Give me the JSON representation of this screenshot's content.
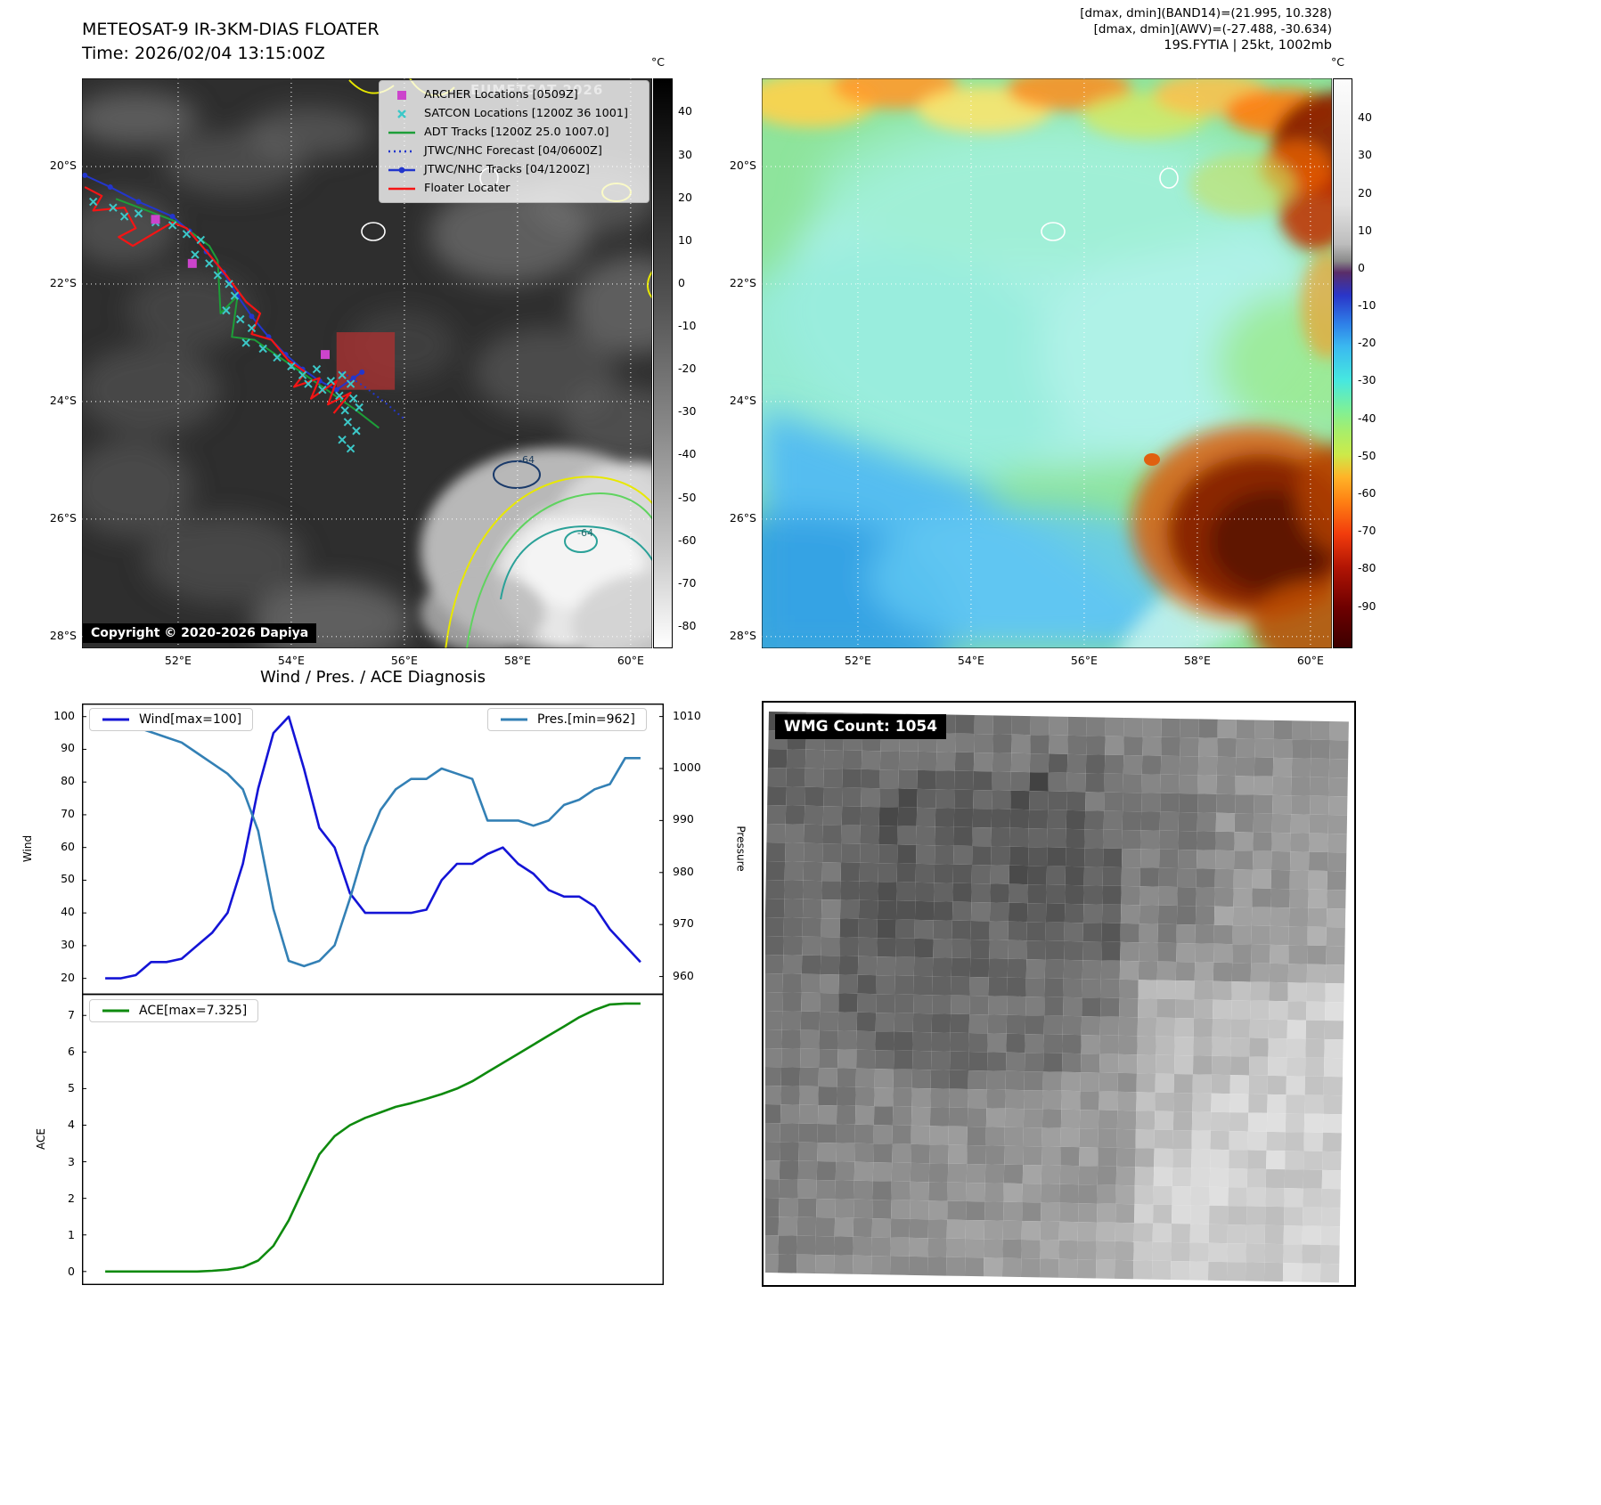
{
  "colors": {
    "wind": "#1414d6",
    "pressure": "#3380b5",
    "ace": "#0e8a0e",
    "track_red": "#f51414",
    "track_green": "#1d9e38",
    "track_blue": "#2336cc",
    "satcon": "#3cc8c8",
    "archer": "#cc44cc",
    "floater_box": "#a83232"
  },
  "panel_ir_gray": {
    "title": "METEOSAT-9 IR-3KM-DIAS FLOATER",
    "subtitle": "Time: 2026/02/04 13:15:00Z",
    "watermark": "EUMETSAT 2026",
    "copyright": "Copyright © 2020-2026 Dapiya",
    "legend": [
      "ARCHER Locations [0509Z]",
      "SATCON Locations [1200Z 36 1001]",
      "ADT Tracks [1200Z 25.0 1007.0]",
      "JTWC/NHC Forecast [04/0600Z]",
      "JTWC/NHC Tracks [04/1200Z]",
      "Floater Locater"
    ],
    "x_ticks": [
      "52°E",
      "54°E",
      "56°E",
      "58°E",
      "60°E"
    ],
    "y_ticks": [
      "20°S",
      "22°S",
      "24°S",
      "26°S",
      "28°S"
    ],
    "colorbar_unit": "°C",
    "colorbar_ticks": [
      40,
      30,
      20,
      10,
      0,
      -10,
      -20,
      -30,
      -40,
      -50,
      -60,
      -70,
      -80
    ],
    "contour_labels": [
      "-64",
      "-64"
    ],
    "tracks": {
      "floater": [
        [
          50.35,
          20.35
        ],
        [
          50.65,
          20.5
        ],
        [
          50.5,
          20.75
        ],
        [
          51.05,
          20.7
        ],
        [
          51.25,
          21.05
        ],
        [
          50.95,
          21.2
        ],
        [
          51.2,
          21.35
        ],
        [
          51.9,
          20.95
        ],
        [
          52.15,
          21.05
        ],
        [
          52.55,
          21.5
        ],
        [
          52.85,
          21.85
        ],
        [
          53.2,
          22.3
        ],
        [
          53.45,
          22.5
        ],
        [
          53.3,
          22.85
        ],
        [
          53.65,
          22.95
        ],
        [
          53.95,
          23.3
        ],
        [
          54.25,
          23.5
        ],
        [
          54.05,
          23.75
        ],
        [
          54.5,
          23.6
        ],
        [
          54.35,
          23.95
        ],
        [
          54.8,
          23.65
        ],
        [
          54.65,
          24.05
        ],
        [
          55.05,
          23.85
        ],
        [
          54.75,
          24.2
        ]
      ],
      "jtwc": [
        [
          50.35,
          20.15
        ],
        [
          50.8,
          20.35
        ],
        [
          51.3,
          20.6
        ],
        [
          51.9,
          20.85
        ],
        [
          52.2,
          21.1
        ],
        [
          52.5,
          21.45
        ],
        [
          52.8,
          21.8
        ],
        [
          53.05,
          22.2
        ],
        [
          53.3,
          22.55
        ],
        [
          53.6,
          22.9
        ],
        [
          53.9,
          23.2
        ],
        [
          54.2,
          23.45
        ],
        [
          54.5,
          23.65
        ],
        [
          54.8,
          23.8
        ],
        [
          55.1,
          23.6
        ],
        [
          55.25,
          23.5
        ]
      ],
      "adt": [
        [
          50.9,
          20.55
        ],
        [
          51.45,
          20.75
        ],
        [
          52.0,
          20.95
        ],
        [
          52.55,
          21.35
        ],
        [
          52.7,
          21.6
        ],
        [
          52.75,
          22.5
        ],
        [
          53.05,
          22.2
        ],
        [
          52.95,
          22.9
        ],
        [
          53.35,
          22.95
        ],
        [
          53.8,
          23.25
        ],
        [
          54.25,
          23.55
        ],
        [
          54.7,
          23.85
        ],
        [
          55.15,
          24.15
        ],
        [
          55.55,
          24.45
        ]
      ],
      "forecast": [
        [
          54.9,
          23.5
        ],
        [
          55.3,
          23.75
        ],
        [
          55.7,
          24.05
        ],
        [
          56.0,
          24.3
        ]
      ],
      "satcon": [
        [
          50.5,
          20.6
        ],
        [
          50.85,
          20.7
        ],
        [
          51.05,
          20.85
        ],
        [
          51.3,
          20.8
        ],
        [
          51.6,
          20.95
        ],
        [
          51.9,
          21.0
        ],
        [
          52.15,
          21.15
        ],
        [
          52.4,
          21.25
        ],
        [
          52.3,
          21.5
        ],
        [
          52.55,
          21.65
        ],
        [
          52.7,
          21.85
        ],
        [
          52.9,
          22.0
        ],
        [
          53.0,
          22.2
        ],
        [
          52.85,
          22.45
        ],
        [
          53.1,
          22.6
        ],
        [
          53.3,
          22.75
        ],
        [
          53.2,
          23.0
        ],
        [
          53.5,
          23.1
        ],
        [
          53.75,
          23.25
        ],
        [
          54.0,
          23.4
        ],
        [
          54.2,
          23.55
        ],
        [
          54.45,
          23.45
        ],
        [
          54.3,
          23.7
        ],
        [
          54.55,
          23.8
        ],
        [
          54.7,
          23.65
        ],
        [
          54.9,
          23.55
        ],
        [
          55.05,
          23.7
        ],
        [
          54.85,
          23.9
        ],
        [
          55.1,
          23.95
        ],
        [
          54.95,
          24.15
        ],
        [
          55.2,
          24.1
        ],
        [
          55.0,
          24.35
        ],
        [
          55.15,
          24.5
        ],
        [
          54.9,
          24.65
        ],
        [
          55.05,
          24.8
        ]
      ],
      "archer": [
        [
          51.6,
          20.9
        ],
        [
          52.25,
          21.65
        ],
        [
          54.6,
          23.2
        ]
      ],
      "floater_box": [
        54.8,
        22.82,
        55.83,
        23.8
      ]
    }
  },
  "panel_ir_color": {
    "header_line1": "[dmax, dmin](BAND14)=(21.995, 10.328)",
    "header_line2": "[dmax, dmin](AWV)=(-27.488, -30.634)",
    "header_line3": "19S.FYTIA | 25kt, 1002mb",
    "x_ticks": [
      "52°E",
      "54°E",
      "56°E",
      "58°E",
      "60°E"
    ],
    "y_ticks": [
      "20°S",
      "22°S",
      "24°S",
      "26°S",
      "28°S"
    ],
    "colorbar_unit": "°C",
    "colorbar_ticks": [
      40,
      30,
      20,
      10,
      0,
      -10,
      -20,
      -30,
      -40,
      -50,
      -60,
      -70,
      -80,
      -90
    ]
  },
  "wmg": {
    "label": "WMG Count: 1054"
  },
  "chart_data": [
    {
      "type": "line",
      "title": "Wind / Pres. / ACE Diagnosis",
      "ylabel_left": "Wind",
      "ylabel_right": "Pressure",
      "ylim_left": [
        15,
        104
      ],
      "ylim_right": [
        956.5,
        1012.5
      ],
      "yticks_left": [
        20,
        30,
        40,
        50,
        60,
        70,
        80,
        90,
        100
      ],
      "yticks_right": [
        960,
        970,
        980,
        990,
        1000,
        1010
      ],
      "legend_position": "top-left / top-right",
      "grid": false,
      "series": [
        {
          "name": "Wind[max=100]",
          "axis": "left",
          "color": "#1414d6",
          "values": [
            20,
            20,
            21,
            25,
            25,
            26,
            30,
            34,
            40,
            55,
            78,
            95,
            100,
            84,
            66,
            60,
            46,
            40,
            40,
            40,
            40,
            41,
            50,
            55,
            55,
            58,
            60,
            55,
            52,
            47,
            45,
            45,
            42,
            35,
            30,
            25
          ]
        },
        {
          "name": "Pres.[min=962]",
          "axis": "right",
          "color": "#3380b5",
          "values": [
            1009,
            1008,
            1008,
            1007,
            1006,
            1005,
            1003,
            1001,
            999,
            996,
            988,
            973,
            963,
            962,
            963,
            966,
            975,
            985,
            992,
            996,
            998,
            998,
            1000,
            999,
            998,
            990,
            990,
            990,
            989,
            990,
            993,
            994,
            996,
            997,
            1002,
            1002
          ]
        }
      ]
    },
    {
      "type": "line",
      "title": "",
      "ylabel_left": "ACE",
      "ylim_left": [
        -0.37,
        7.59
      ],
      "yticks_left": [
        0,
        1,
        2,
        3,
        4,
        5,
        6,
        7
      ],
      "legend_position": "top-left",
      "grid": false,
      "series": [
        {
          "name": "ACE[max=7.325]",
          "axis": "left",
          "color": "#0e8a0e",
          "values": [
            0,
            0,
            0,
            0,
            0,
            0,
            0,
            0.02,
            0.05,
            0.12,
            0.3,
            0.7,
            1.4,
            2.3,
            3.2,
            3.7,
            4.0,
            4.2,
            4.35,
            4.5,
            4.6,
            4.72,
            4.85,
            5.0,
            5.2,
            5.45,
            5.7,
            5.95,
            6.2,
            6.45,
            6.7,
            6.95,
            7.15,
            7.3,
            7.325,
            7.325
          ]
        }
      ]
    }
  ]
}
